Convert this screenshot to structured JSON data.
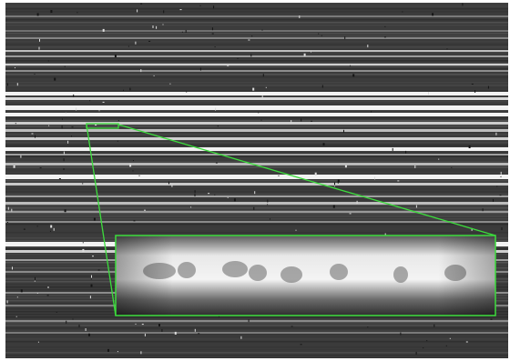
{
  "image": {
    "description_kind": "grayscale spectral-line micrograph with zoom inset",
    "colors": {
      "background": "#3b3b3b",
      "bright_line": "#f2f2f2",
      "mid_line": "#a8a8a8",
      "dark_line": "#2a2a2a",
      "highlight": "#3cdc3c"
    }
  }
}
